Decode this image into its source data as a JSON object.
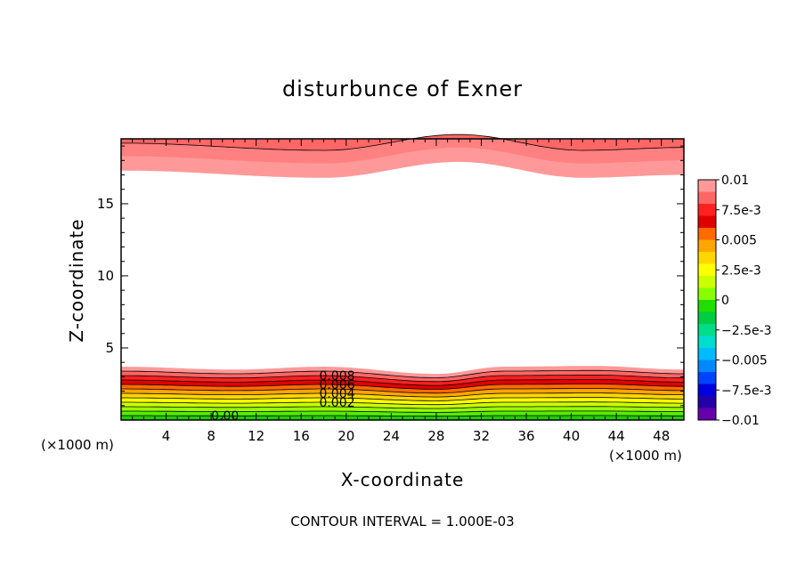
{
  "chart_data": {
    "type": "contour",
    "title": "disturbunce of Exner",
    "xlabel": "X-coordinate",
    "ylabel": "Z-coordinate",
    "x_unit_left": "(×1000 m)",
    "x_unit_right": "(×1000 m)",
    "xlim": [
      0,
      50
    ],
    "ylim": [
      0,
      19.5
    ],
    "x_ticks": [
      4,
      8,
      12,
      16,
      20,
      24,
      28,
      32,
      36,
      40,
      44,
      48
    ],
    "y_ticks": [
      5,
      10,
      15
    ],
    "contour_interval": "CONTOUR INTERVAL = 1.000E-03",
    "contour_labels": [
      "0.008",
      "0.006",
      "0.004",
      "0.002",
      "0.00"
    ],
    "colorbar": {
      "range": [
        -0.01,
        0.01
      ],
      "labels": [
        "0.01",
        "7.5e-3",
        "0.005",
        "2.5e-3",
        "0",
        "−2.5e-3",
        "−0.005",
        "−7.5e-3",
        "−0.01"
      ],
      "colors": [
        "#ff9999",
        "#ff6666",
        "#ff2020",
        "#e00000",
        "#ff6a00",
        "#ffa500",
        "#ffd700",
        "#ffff00",
        "#ccff00",
        "#88ff00",
        "#22dd00",
        "#00cc44",
        "#00dd88",
        "#00ddcc",
        "#00bbff",
        "#0088ff",
        "#0044ff",
        "#0000dd",
        "#2200aa",
        "#6600aa"
      ]
    },
    "bottom_bands": {
      "colors": [
        "#22cc00",
        "#55ee00",
        "#99ff00",
        "#ccff00",
        "#ffff00",
        "#ffd700",
        "#ffa500",
        "#ff6a00",
        "#e00000",
        "#ff2020",
        "#ff6666",
        "#ff9999"
      ],
      "base_height": 3.5,
      "wave": [
        [
          0,
          0.2
        ],
        [
          10,
          0.0
        ],
        [
          18,
          0.2
        ],
        [
          28,
          -0.3
        ],
        [
          34,
          0.2
        ],
        [
          42,
          0.25
        ],
        [
          50,
          0.0
        ]
      ]
    },
    "top_bands": {
      "colors": [
        "#ff9999",
        "#ff8080",
        "#ff6666"
      ],
      "levels": [
        17.3,
        18.3,
        19.2
      ],
      "wave": [
        [
          0,
          0.0
        ],
        [
          18,
          -0.5
        ],
        [
          30,
          0.6
        ],
        [
          41,
          -0.5
        ],
        [
          50,
          -0.3
        ]
      ]
    }
  }
}
